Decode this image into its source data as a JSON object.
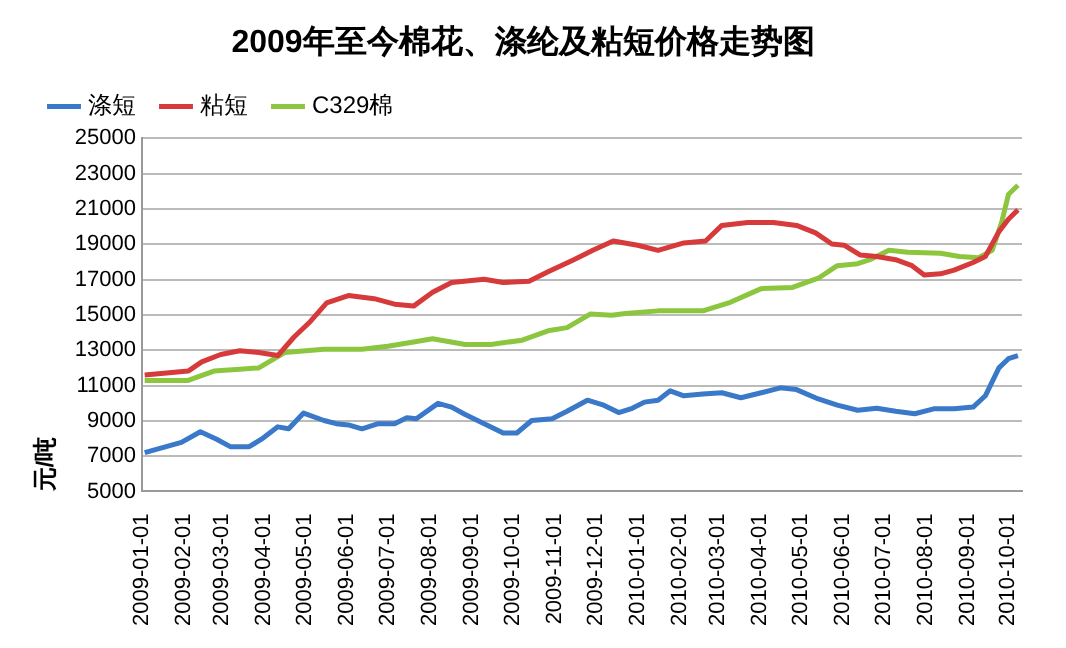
{
  "chart_data": {
    "type": "line",
    "title": "2009年至今棉花、涤纶及粘短价格走势图",
    "ylabel": "元/吨",
    "xlim": [
      "2009-01-01",
      "2010-10-11"
    ],
    "xticks": [
      "2009-01-01",
      "2009-02-01",
      "2009-03-01",
      "2009-04-01",
      "2009-05-01",
      "2009-06-01",
      "2009-07-01",
      "2009-08-01",
      "2009-09-01",
      "2009-10-01",
      "2009-11-01",
      "2009-12-01",
      "2010-01-01",
      "2010-02-01",
      "2010-03-01",
      "2010-04-01",
      "2010-05-01",
      "2010-06-01",
      "2010-07-01",
      "2010-08-01",
      "2010-09-01",
      "2010-10-01"
    ],
    "ylim": [
      5000,
      25000
    ],
    "yticks": [
      5000,
      7000,
      9000,
      11000,
      13000,
      15000,
      17000,
      19000,
      21000,
      23000,
      25000
    ],
    "grid": "y",
    "legend": "top left",
    "marker": "none",
    "line_style": "solid",
    "series": [
      {
        "name": "涤短",
        "color": "#3a78c9",
        "x": [
          "2009-01-03",
          "2009-01-30",
          "2009-02-13",
          "2009-02-25",
          "2009-03-07",
          "2009-03-21",
          "2009-03-30",
          "2009-04-11",
          "2009-04-19",
          "2009-04-30",
          "2009-05-15",
          "2009-05-24",
          "2009-06-02",
          "2009-06-12",
          "2009-06-24",
          "2009-07-06",
          "2009-07-15",
          "2009-07-22",
          "2009-08-07",
          "2009-08-17",
          "2009-08-27",
          "2009-09-10",
          "2009-09-24",
          "2009-10-04",
          "2009-10-15",
          "2009-10-30",
          "2009-11-10",
          "2009-11-25",
          "2009-12-07",
          "2009-12-18",
          "2009-12-28",
          "2010-01-06",
          "2010-01-16",
          "2010-01-25",
          "2010-02-04",
          "2010-02-18",
          "2010-03-04",
          "2010-03-18",
          "2010-04-02",
          "2010-04-16",
          "2010-04-28",
          "2010-05-14",
          "2010-05-28",
          "2010-06-12",
          "2010-06-26",
          "2010-07-10",
          "2010-07-24",
          "2010-08-07",
          "2010-08-22",
          "2010-09-05",
          "2010-09-14",
          "2010-09-24",
          "2010-10-01",
          "2010-10-08"
        ],
        "values": [
          7200,
          7780,
          8380,
          7960,
          7540,
          7540,
          7960,
          8660,
          8550,
          9440,
          9020,
          8840,
          8770,
          8550,
          8840,
          8840,
          9180,
          9120,
          9990,
          9780,
          9360,
          8840,
          8310,
          8310,
          9020,
          9120,
          9540,
          10170,
          9890,
          9470,
          9710,
          10060,
          10170,
          10700,
          10420,
          10520,
          10590,
          10310,
          10590,
          10870,
          10770,
          10240,
          9890,
          9600,
          9710,
          9540,
          9400,
          9680,
          9680,
          9780,
          10420,
          12000,
          12520,
          12700
        ]
      },
      {
        "name": "粘短",
        "color": "#d63a3a",
        "x": [
          "2009-01-03",
          "2009-02-04",
          "2009-02-14",
          "2009-02-28",
          "2009-03-14",
          "2009-03-28",
          "2009-04-11",
          "2009-04-23",
          "2009-05-05",
          "2009-05-17",
          "2009-06-02",
          "2009-06-21",
          "2009-07-06",
          "2009-07-20",
          "2009-08-03",
          "2009-08-17",
          "2009-09-10",
          "2009-09-24",
          "2009-10-13",
          "2009-10-27",
          "2009-11-15",
          "2009-11-29",
          "2009-12-14",
          "2010-01-01",
          "2010-01-16",
          "2010-02-04",
          "2010-02-20",
          "2010-03-04",
          "2010-03-23",
          "2010-04-11",
          "2010-04-28",
          "2010-05-12",
          "2010-05-24",
          "2010-06-02",
          "2010-06-14",
          "2010-06-26",
          "2010-07-10",
          "2010-07-22",
          "2010-07-31",
          "2010-08-12",
          "2010-08-22",
          "2010-09-05",
          "2010-09-14",
          "2010-09-24",
          "2010-10-01",
          "2010-10-08"
        ],
        "values": [
          11600,
          11820,
          12340,
          12760,
          12970,
          12870,
          12700,
          13750,
          14630,
          15680,
          16100,
          15920,
          15610,
          15500,
          16280,
          16840,
          17020,
          16840,
          16910,
          17440,
          18130,
          18660,
          19190,
          18950,
          18660,
          19080,
          19190,
          20070,
          20240,
          20240,
          20070,
          19650,
          19020,
          18950,
          18390,
          18310,
          18130,
          17790,
          17260,
          17330,
          17540,
          17970,
          18310,
          19720,
          20420,
          20950
        ]
      },
      {
        "name": "C329棉",
        "color": "#8cc63f",
        "x": [
          "2009-01-03",
          "2009-02-04",
          "2009-02-23",
          "2009-03-14",
          "2009-03-28",
          "2009-04-16",
          "2009-05-15",
          "2009-06-12",
          "2009-07-01",
          "2009-07-20",
          "2009-08-03",
          "2009-08-27",
          "2009-09-15",
          "2009-10-08",
          "2009-10-27",
          "2009-11-10",
          "2009-11-27",
          "2009-12-13",
          "2009-12-23",
          "2010-01-16",
          "2010-02-18",
          "2010-03-09",
          "2010-04-02",
          "2010-04-25",
          "2010-05-14",
          "2010-05-28",
          "2010-06-12",
          "2010-06-21",
          "2010-07-05",
          "2010-07-19",
          "2010-08-12",
          "2010-08-26",
          "2010-09-09",
          "2010-09-19",
          "2010-09-26",
          "2010-10-01",
          "2010-10-08"
        ],
        "values": [
          11290,
          11290,
          11820,
          11920,
          12000,
          12870,
          13050,
          13050,
          13230,
          13470,
          13650,
          13330,
          13330,
          13570,
          14100,
          14280,
          15050,
          14980,
          15080,
          15230,
          15230,
          15680,
          16490,
          16560,
          17080,
          17790,
          17900,
          18130,
          18660,
          18550,
          18490,
          18310,
          18240,
          18660,
          20240,
          21820,
          22350
        ]
      }
    ]
  }
}
